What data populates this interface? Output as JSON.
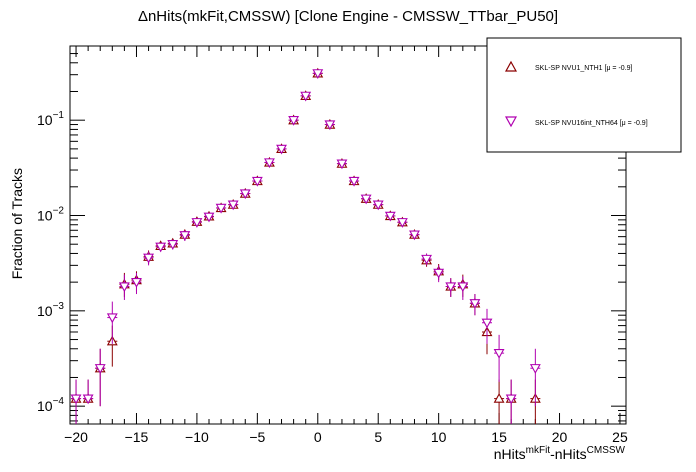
{
  "chart_data": {
    "type": "scatter",
    "title": "ΔnHits(mkFit,CMSSW) [Clone Engine - CMSSW_TTbar_PU50]",
    "xlabel": {
      "parts": [
        "nHits",
        "mkFit",
        "-nHits",
        "CMSSW"
      ]
    },
    "ylabel": "Fraction of Tracks",
    "xlim": [
      -20.5,
      25.5
    ],
    "ylim": [
      6.5e-05,
      0.6
    ],
    "yscale": "log",
    "x_ticks": [
      -20,
      -15,
      -10,
      -5,
      0,
      5,
      10,
      15,
      20,
      25
    ],
    "x_tick_labels": [
      "−20",
      "−15",
      "−10",
      "−5",
      "0",
      "5",
      "10",
      "15",
      "20",
      "25"
    ],
    "y_ticks": [
      0.0001,
      0.001,
      0.01,
      0.1
    ],
    "y_tick_labels": [
      {
        "base": "10",
        "exp": "−4"
      },
      {
        "base": "10",
        "exp": "−3"
      },
      {
        "base": "10",
        "exp": "−2"
      },
      {
        "base": "10",
        "exp": "−1"
      }
    ],
    "legend_placement": "top-right",
    "series": [
      {
        "name": "SKL-SP NVU1_NTH1 [μ = -0.9]",
        "marker": "triangle-up",
        "color": "#8b0000",
        "x": [
          -20,
          -19,
          -18,
          -17,
          -16,
          -15,
          -14,
          -13,
          -12,
          -11,
          -10,
          -9,
          -8,
          -7,
          -6,
          -5,
          -4,
          -3,
          -2,
          -1,
          0,
          1,
          2,
          3,
          4,
          5,
          6,
          7,
          8,
          9,
          10,
          11,
          12,
          13,
          14,
          15,
          16,
          18
        ],
        "y": [
          0.00012,
          0.00012,
          0.00025,
          0.00048,
          0.0019,
          0.0021,
          0.0037,
          0.0048,
          0.0051,
          0.0063,
          0.0086,
          0.0098,
          0.012,
          0.013,
          0.017,
          0.023,
          0.036,
          0.05,
          0.1,
          0.18,
          0.31,
          0.09,
          0.035,
          0.023,
          0.015,
          0.013,
          0.0099,
          0.0085,
          0.0063,
          0.0034,
          0.0026,
          0.0018,
          0.0019,
          0.0012,
          0.0006,
          0.00012,
          0.00012,
          0.00012
        ],
        "err_low": [
          6e-05,
          0,
          0.00015,
          0.00022,
          0.0005,
          0.0005,
          0.0006,
          0.0005,
          0.0006,
          0.0008,
          0.0006,
          0.0007,
          0.0008,
          0.0008,
          0.001,
          0.0012,
          0.002,
          0.003,
          0.004,
          0.006,
          0.01,
          0.004,
          0.002,
          0.0015,
          0.001,
          0.0009,
          0.0008,
          0.0007,
          0.0007,
          0.0005,
          0.0005,
          0.0004,
          0.0005,
          0.0003,
          0.00025,
          6e-05,
          6e-05,
          6e-05
        ],
        "err_high": [
          7e-05,
          7e-05,
          0.00015,
          0.00022,
          0.0006,
          0.0005,
          0.0006,
          0.0005,
          0.0006,
          0.0008,
          0.0006,
          0.0007,
          0.0008,
          0.0008,
          0.001,
          0.0012,
          0.002,
          0.003,
          0.004,
          0.006,
          0.01,
          0.004,
          0.002,
          0.0015,
          0.001,
          0.0009,
          0.0008,
          0.0007,
          0.0007,
          0.0005,
          0.0005,
          0.0004,
          0.0005,
          0.0003,
          0.00025,
          7e-05,
          7e-05,
          7e-05
        ]
      },
      {
        "name": "SKL-SP NVU16int_NTH64 [μ = -0.9]",
        "marker": "triangle-down",
        "color": "#b000b0",
        "x": [
          -20,
          -19,
          -18,
          -17,
          -16,
          -15,
          -14,
          -13,
          -12,
          -11,
          -10,
          -9,
          -8,
          -7,
          -6,
          -5,
          -4,
          -3,
          -2,
          -1,
          0,
          1,
          2,
          3,
          4,
          5,
          6,
          7,
          8,
          9,
          10,
          11,
          12,
          13,
          14,
          15,
          16,
          18
        ],
        "y": [
          0.00012,
          0.00012,
          0.00025,
          0.00085,
          0.0018,
          0.002,
          0.0036,
          0.0047,
          0.005,
          0.0062,
          0.0085,
          0.0097,
          0.012,
          0.013,
          0.017,
          0.023,
          0.036,
          0.05,
          0.1,
          0.18,
          0.31,
          0.09,
          0.035,
          0.023,
          0.015,
          0.013,
          0.0099,
          0.0085,
          0.0063,
          0.0035,
          0.0025,
          0.0018,
          0.0018,
          0.0012,
          0.00075,
          0.00036,
          0.00012,
          0.00025
        ],
        "err_low": [
          6e-05,
          0,
          0.00015,
          0.0004,
          0.0005,
          0.0005,
          0.0006,
          0.0005,
          0.0006,
          0.0008,
          0.0006,
          0.0007,
          0.0008,
          0.0008,
          0.001,
          0.0012,
          0.002,
          0.003,
          0.004,
          0.006,
          0.01,
          0.004,
          0.002,
          0.0015,
          0.001,
          0.0009,
          0.0008,
          0.0007,
          0.0007,
          0.0005,
          0.0005,
          0.0004,
          0.0005,
          0.0003,
          0.0003,
          0.00018,
          6e-05,
          0.00015
        ],
        "err_high": [
          7e-05,
          7e-05,
          0.00015,
          0.0004,
          0.0006,
          0.0005,
          0.0006,
          0.0005,
          0.0006,
          0.0008,
          0.0006,
          0.0007,
          0.0008,
          0.0008,
          0.001,
          0.0012,
          0.002,
          0.003,
          0.004,
          0.006,
          0.01,
          0.004,
          0.002,
          0.0015,
          0.001,
          0.0009,
          0.0008,
          0.0007,
          0.0007,
          0.0005,
          0.0005,
          0.0004,
          0.0005,
          0.0003,
          0.0003,
          0.0002,
          7e-05,
          0.00015
        ]
      }
    ]
  }
}
